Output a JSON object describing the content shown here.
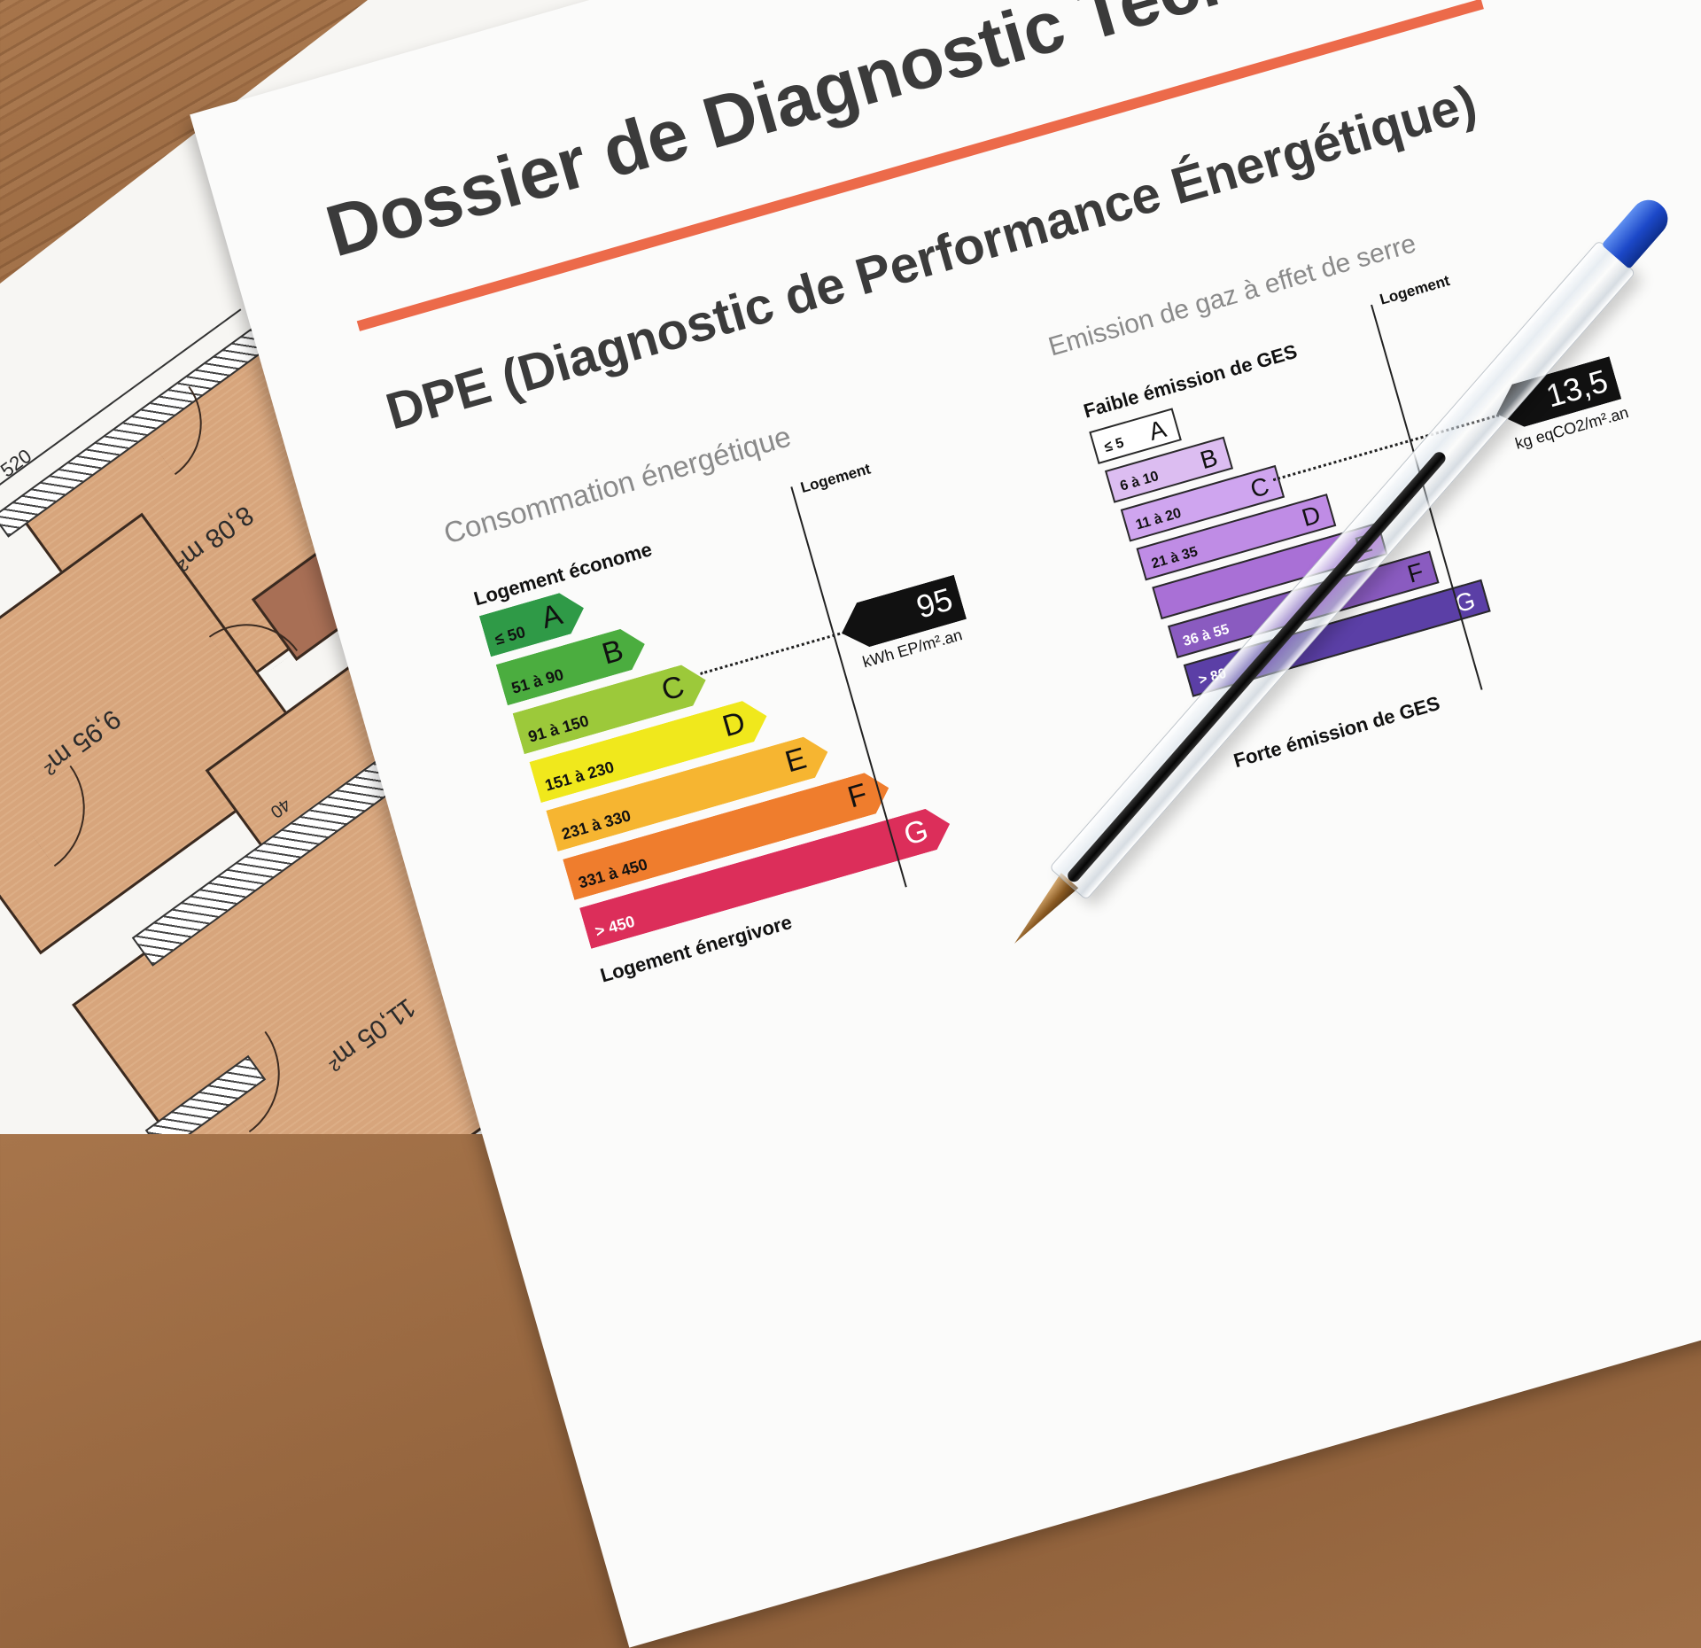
{
  "floor_plan": {
    "rooms": [
      {
        "area": "8,08 m²"
      },
      {
        "area": "9,95 m²"
      },
      {
        "area": "11,05 m²"
      }
    ],
    "dimensions": [
      "520",
      "40"
    ],
    "room_color": "#d7a57c"
  },
  "document": {
    "title": "Dossier de Diagnostic Technique",
    "accent_color": "#ec6a4a",
    "subtitle": "DPE (Diagnostic de Performance Énergétique)",
    "energy": {
      "section_title": "Consommation énergétique",
      "top_label": "Logement économe",
      "bottom_label": "Logement énergivore",
      "column_label": "Logement",
      "value": "95",
      "unit": "kWh EP/m².an",
      "current_class": "C",
      "classes": [
        {
          "letter": "A",
          "range": "≤ 50",
          "color": "#2f9a47"
        },
        {
          "letter": "B",
          "range": "51 à 90",
          "color": "#4bad3f"
        },
        {
          "letter": "C",
          "range": "91 à 150",
          "color": "#9cc93a"
        },
        {
          "letter": "D",
          "range": "151 à 230",
          "color": "#f0e81c"
        },
        {
          "letter": "E",
          "range": "231 à 330",
          "color": "#f6b531"
        },
        {
          "letter": "F",
          "range": "331 à 450",
          "color": "#ef7d2d"
        },
        {
          "letter": "G",
          "range": "> 450",
          "color": "#dc2e5a"
        }
      ]
    },
    "ges": {
      "section_title": "Emission de gaz à effet de serre",
      "top_label": "Faible émission de GES",
      "bottom_label": "Forte émission de GES",
      "column_label": "Logement",
      "value": "13,5",
      "unit": "kg eqCO2/m².an",
      "current_class": "C",
      "classes": [
        {
          "letter": "A",
          "range": "≤ 5",
          "color": "#ffffff"
        },
        {
          "letter": "B",
          "range": "6 à 10",
          "color": "#dcbdf1"
        },
        {
          "letter": "C",
          "range": "11 à 20",
          "color": "#cfa5ef"
        },
        {
          "letter": "D",
          "range": "21 à 35",
          "color": "#bf8ce5"
        },
        {
          "letter": "E",
          "range": "",
          "color": "#a970d6"
        },
        {
          "letter": "F",
          "range": "36 à 55",
          "color": "#8a5bc0"
        },
        {
          "letter": "G",
          "range": "> 80",
          "color": "#5b3fa6"
        }
      ]
    }
  },
  "pen": {
    "cap_color": "#1c48c8"
  }
}
